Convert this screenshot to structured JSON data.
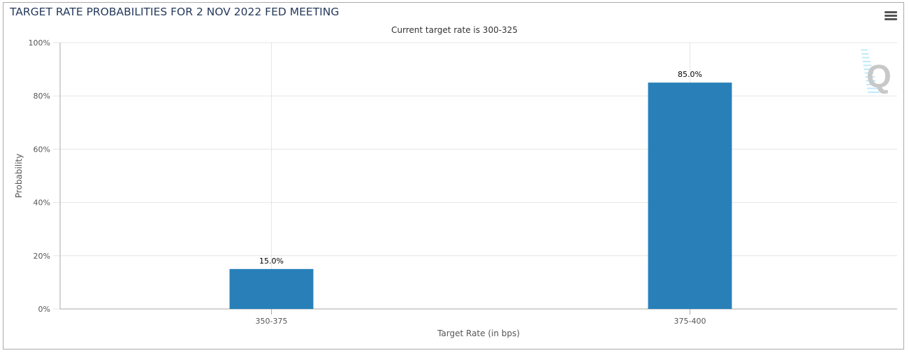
{
  "chart_data": {
    "type": "bar",
    "title": "TARGET RATE PROBABILITIES FOR 2 NOV 2022 FED MEETING",
    "subtitle": "Current target rate is 300-325",
    "xlabel": "Target Rate (in bps)",
    "ylabel": "Probability",
    "categories": [
      "350-375",
      "375-400"
    ],
    "values": [
      15.0,
      85.0
    ],
    "data_labels": [
      "15.0%",
      "85.0%"
    ],
    "ylim": [
      0,
      100
    ],
    "yticks": [
      "0%",
      "20%",
      "40%",
      "60%",
      "80%",
      "100%"
    ],
    "grid": true,
    "legend": "none",
    "colors": {
      "bar": "#2980b9",
      "grid": "#e6e6e6",
      "axis": "#aaaaaa"
    }
  },
  "icons": {
    "menu": "hamburger-menu-icon",
    "watermark": "quikstrike-q-logo"
  }
}
